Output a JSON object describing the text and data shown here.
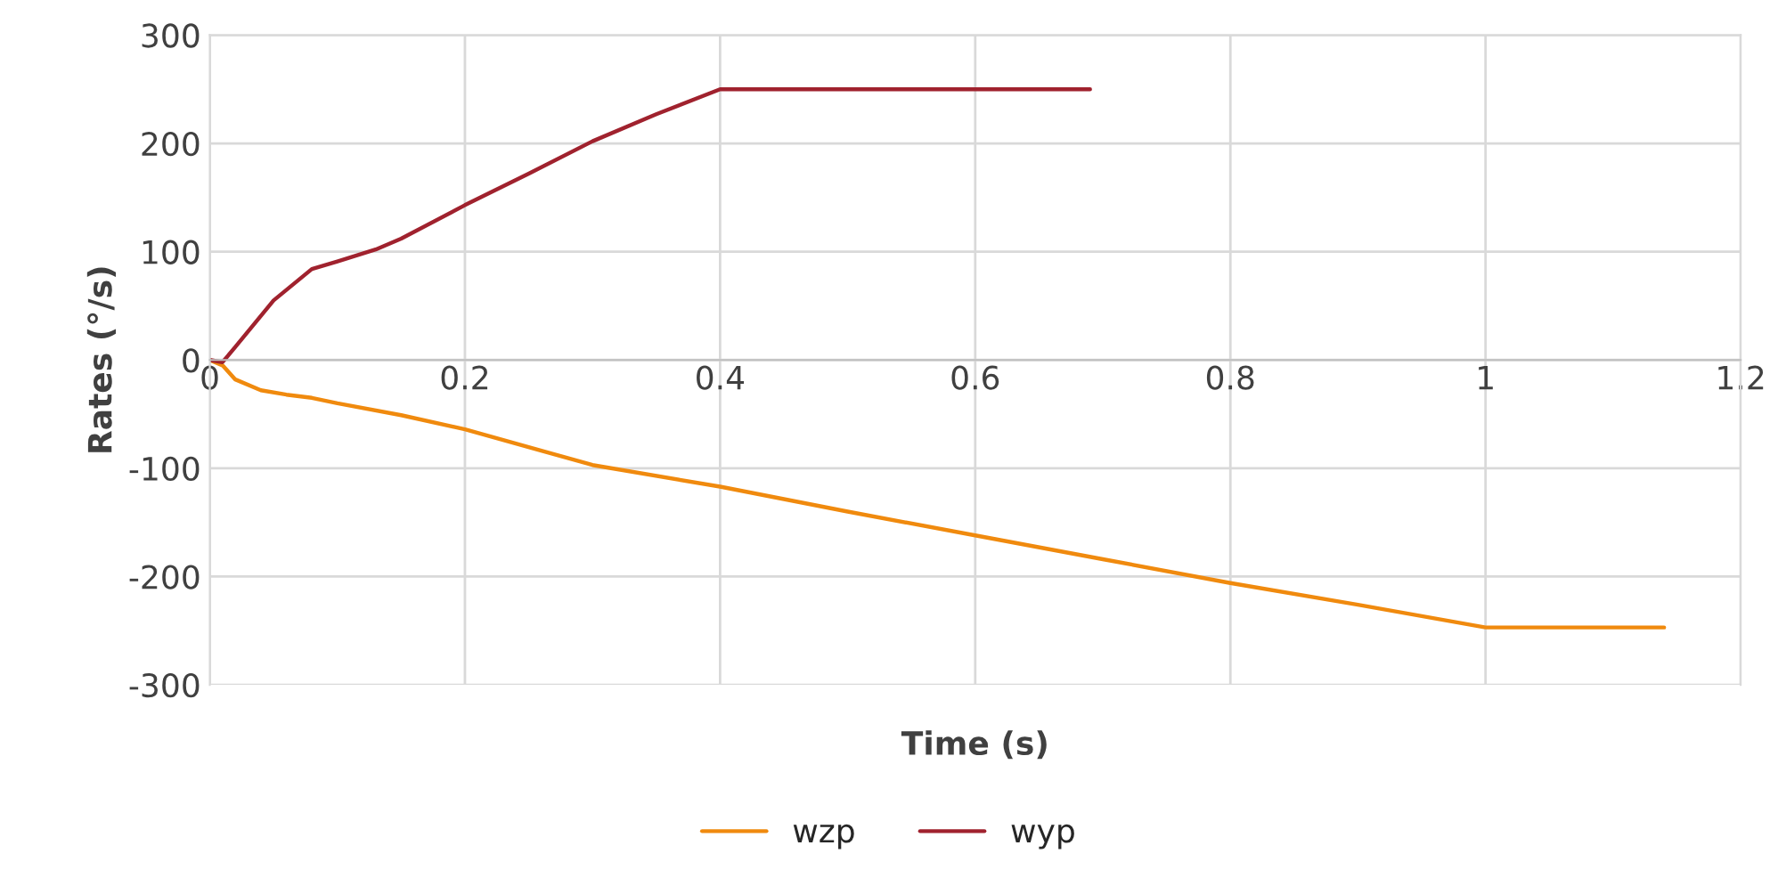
{
  "chart_data": {
    "type": "line",
    "xlabel": "Time (s)",
    "ylabel": "Rates (°/s)",
    "xlim": [
      0,
      1.2
    ],
    "xticks": [
      0,
      0.2,
      0.4,
      0.6,
      0.8,
      1,
      1.2
    ],
    "ylim": [
      -300,
      300
    ],
    "yticks": [
      -300,
      -200,
      -100,
      0,
      100,
      200,
      300
    ],
    "grid": true,
    "legend": "bottom",
    "marker": "none",
    "line_style": "solid",
    "series": [
      {
        "name": "wzp",
        "color": "#f08a0e",
        "x": [
          0,
          0.01,
          0.02,
          0.04,
          0.06,
          0.08,
          0.1,
          0.15,
          0.2,
          0.3,
          0.4,
          0.5,
          0.6,
          0.7,
          0.8,
          0.9,
          1.0,
          1.07,
          1.14
        ],
        "values": [
          0,
          -5,
          -18,
          -28,
          -32,
          -35,
          -40,
          -51,
          -64,
          -97,
          -117,
          -140,
          -162,
          -184,
          -206,
          -226,
          -247,
          -247,
          -247
        ]
      },
      {
        "name": "wyp",
        "color": "#a0222e",
        "x": [
          0,
          0.01,
          0.02,
          0.05,
          0.08,
          0.1,
          0.13,
          0.15,
          0.2,
          0.25,
          0.3,
          0.35,
          0.4,
          0.5,
          0.6,
          0.69
        ],
        "values": [
          0,
          -2,
          12,
          55,
          84,
          91,
          102,
          112,
          143,
          172,
          202,
          227,
          250,
          250,
          250,
          250
        ]
      }
    ]
  }
}
